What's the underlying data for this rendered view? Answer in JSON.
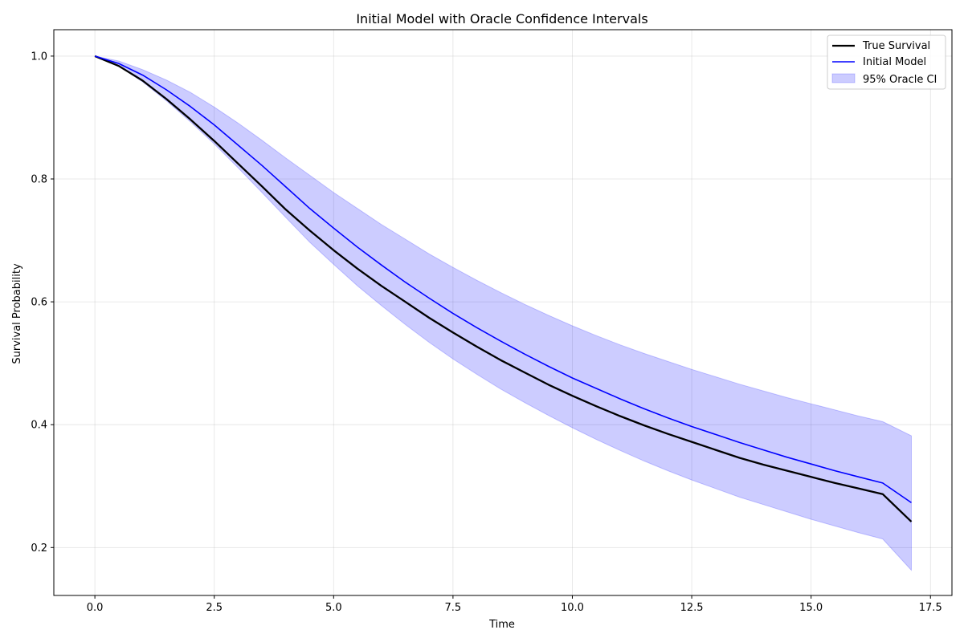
{
  "chart_data": {
    "type": "line",
    "title": "Initial Model with Oracle Confidence Intervals",
    "xlabel": "Time",
    "ylabel": "Survival Probability",
    "xlim": [
      -0.86,
      17.95
    ],
    "ylim": [
      0.122,
      1.043
    ],
    "xticks": [
      0.0,
      2.5,
      5.0,
      7.5,
      10.0,
      12.5,
      15.0,
      17.5
    ],
    "xtick_labels": [
      "0.0",
      "2.5",
      "5.0",
      "7.5",
      "10.0",
      "12.5",
      "15.0",
      "17.5"
    ],
    "yticks": [
      0.2,
      0.4,
      0.6,
      0.8,
      1.0
    ],
    "ytick_labels": [
      "0.2",
      "0.4",
      "0.6",
      "0.8",
      "1.0"
    ],
    "grid": true,
    "legend_position": "top-right",
    "x": [
      0.0,
      0.5,
      1.0,
      1.5,
      2.0,
      2.5,
      3.0,
      3.5,
      4.0,
      4.5,
      5.0,
      5.5,
      6.0,
      6.5,
      7.0,
      7.5,
      8.0,
      8.5,
      9.0,
      9.5,
      10.0,
      10.5,
      11.0,
      11.5,
      12.0,
      12.5,
      13.0,
      13.5,
      14.0,
      14.5,
      15.0,
      15.5,
      16.0,
      16.5,
      17.1
    ],
    "series": [
      {
        "name": "True Survival",
        "color": "#000000",
        "values": [
          1.0,
          0.984,
          0.96,
          0.93,
          0.897,
          0.862,
          0.825,
          0.788,
          0.75,
          0.716,
          0.684,
          0.654,
          0.626,
          0.6,
          0.574,
          0.55,
          0.527,
          0.505,
          0.485,
          0.465,
          0.447,
          0.43,
          0.414,
          0.399,
          0.385,
          0.372,
          0.359,
          0.346,
          0.335,
          0.325,
          0.315,
          0.305,
          0.296,
          0.287,
          0.242
        ]
      },
      {
        "name": "Initial Model",
        "color": "#0000ff",
        "values": [
          1.0,
          0.988,
          0.969,
          0.945,
          0.918,
          0.888,
          0.855,
          0.822,
          0.787,
          0.752,
          0.72,
          0.689,
          0.66,
          0.632,
          0.606,
          0.581,
          0.558,
          0.536,
          0.515,
          0.495,
          0.476,
          0.459,
          0.442,
          0.426,
          0.411,
          0.397,
          0.384,
          0.371,
          0.359,
          0.347,
          0.336,
          0.325,
          0.315,
          0.305,
          0.273
        ]
      }
    ],
    "band": {
      "name": "95% Oracle CI",
      "color": "#0000ff",
      "opacity": 0.2,
      "lower": [
        1.0,
        0.984,
        0.958,
        0.927,
        0.893,
        0.857,
        0.818,
        0.778,
        0.737,
        0.697,
        0.661,
        0.626,
        0.594,
        0.563,
        0.534,
        0.507,
        0.482,
        0.458,
        0.436,
        0.415,
        0.395,
        0.376,
        0.358,
        0.341,
        0.325,
        0.31,
        0.296,
        0.282,
        0.27,
        0.258,
        0.246,
        0.235,
        0.224,
        0.214,
        0.163
      ],
      "upper": [
        1.0,
        0.992,
        0.978,
        0.961,
        0.941,
        0.917,
        0.891,
        0.863,
        0.834,
        0.806,
        0.778,
        0.752,
        0.726,
        0.702,
        0.678,
        0.656,
        0.635,
        0.615,
        0.596,
        0.578,
        0.561,
        0.545,
        0.53,
        0.516,
        0.503,
        0.49,
        0.478,
        0.466,
        0.455,
        0.444,
        0.434,
        0.424,
        0.414,
        0.405,
        0.382
      ]
    }
  }
}
